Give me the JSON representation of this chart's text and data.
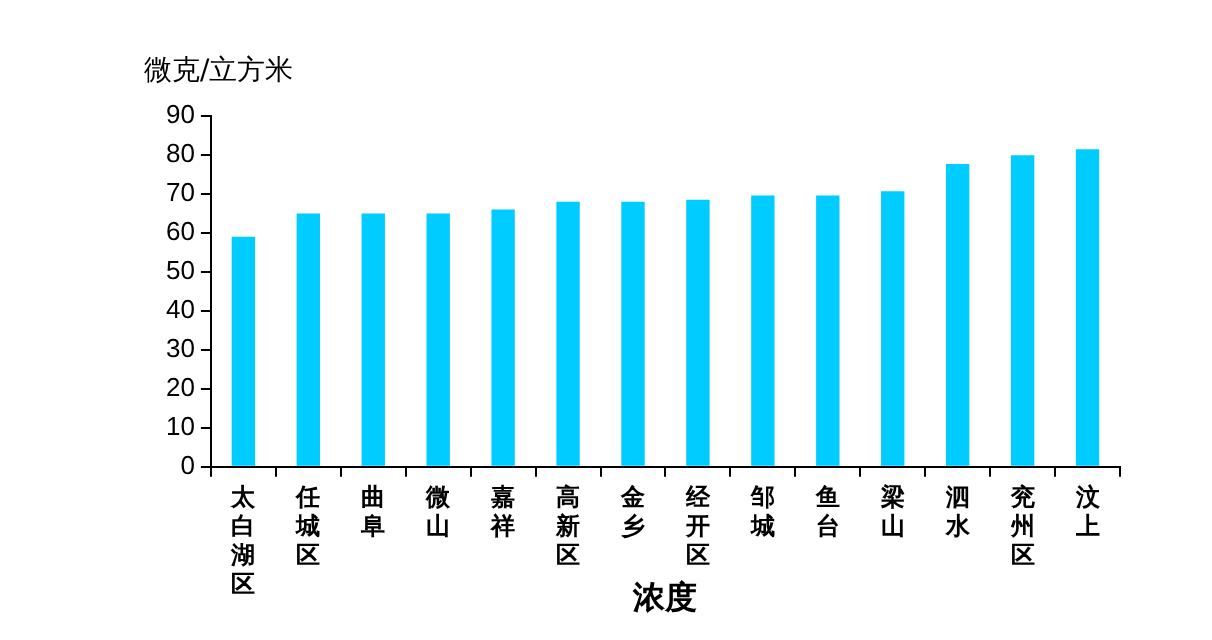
{
  "chart_data": {
    "type": "bar",
    "ylabel": "微克/立方米",
    "xlabel": "浓度",
    "categories": [
      "太白湖区",
      "任城区",
      "曲阜",
      "微山",
      "嘉祥",
      "高新区",
      "金乡",
      "经开区",
      "邹城",
      "鱼台",
      "梁山",
      "泗水",
      "兖州区",
      "汶上"
    ],
    "values": [
      59,
      65,
      65,
      65,
      66,
      68,
      68,
      68.5,
      69.6,
      69.6,
      70.7,
      77.7,
      79.9,
      81.5
    ],
    "color": "#00ccff",
    "ylim": [
      0,
      90
    ],
    "yticks": [
      0,
      10,
      20,
      30,
      40,
      50,
      60,
      70,
      80,
      90
    ],
    "grid": false,
    "legend": false
  }
}
